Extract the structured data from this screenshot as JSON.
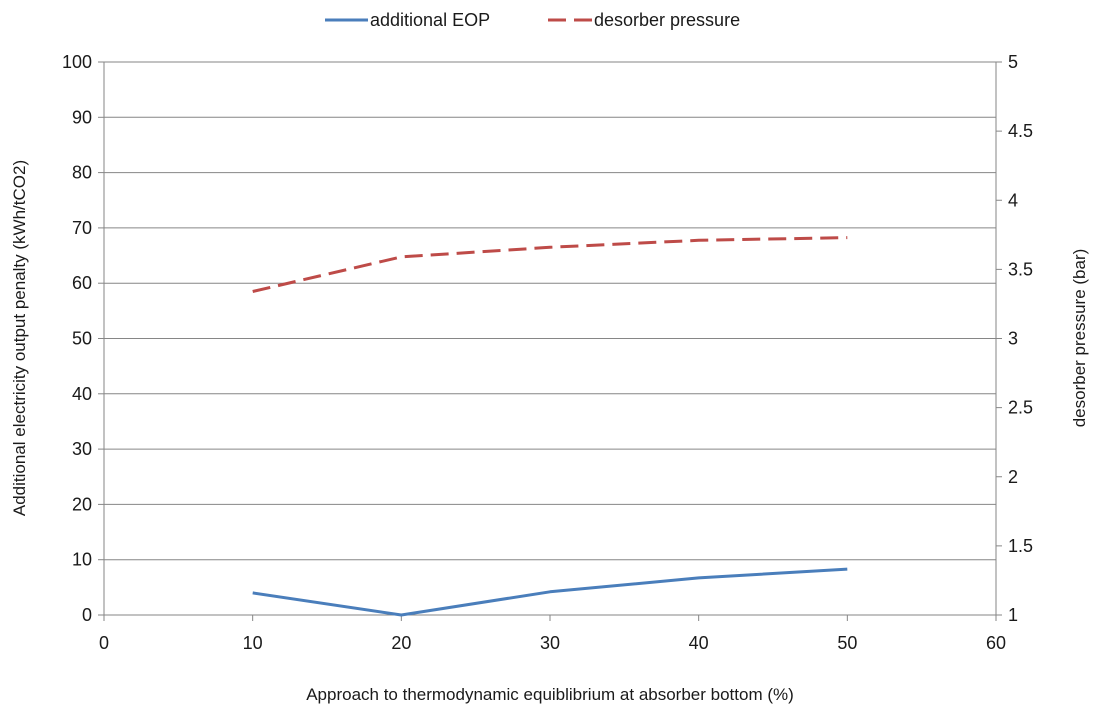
{
  "chart_data": {
    "type": "line",
    "title": "",
    "xlabel": "Approach to thermodynamic equiblibrium at absorber bottom (%)",
    "ylabel": "Additional electricity output penalty (kWh/tCO2)",
    "y2label": "desorber pressure  (bar)",
    "xlim": [
      0,
      60
    ],
    "ylim": [
      0,
      100
    ],
    "y2lim": [
      1,
      5
    ],
    "x_ticks": [
      0,
      10,
      20,
      30,
      40,
      50,
      60
    ],
    "y_ticks": [
      0,
      10,
      20,
      30,
      40,
      50,
      60,
      70,
      80,
      90,
      100
    ],
    "y2_ticks": [
      "1",
      "1.5",
      "2",
      "2.5",
      "3",
      "3.5",
      "4",
      "4.5",
      "5"
    ],
    "grid": "horizontal",
    "legend_position": "top",
    "series": [
      {
        "name": "additional EOP",
        "axis": "left",
        "color": "#4a7ebb",
        "style": "solid",
        "x": [
          10,
          20,
          30,
          40,
          50
        ],
        "values": [
          4.0,
          0.0,
          4.2,
          6.7,
          8.3
        ]
      },
      {
        "name": "desorber pressure",
        "axis": "right",
        "color": "#be4b48",
        "style": "dashed",
        "x": [
          10,
          20,
          30,
          40,
          50
        ],
        "values": [
          3.34,
          3.59,
          3.66,
          3.71,
          3.73
        ]
      }
    ]
  }
}
